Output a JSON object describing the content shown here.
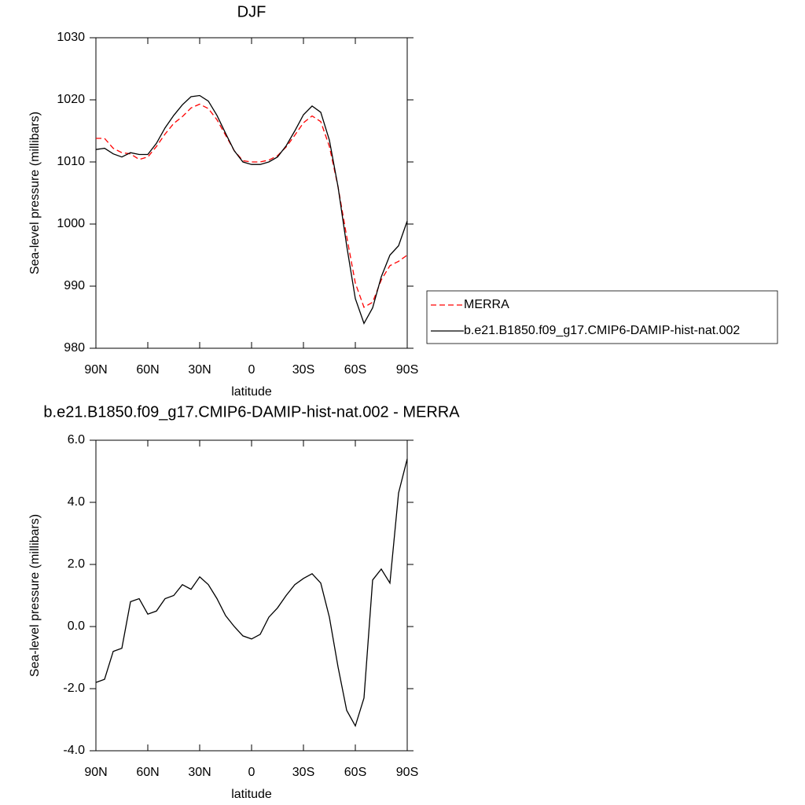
{
  "chart_data": [
    {
      "type": "line",
      "title": "DJF",
      "x_label": "latitude",
      "y_label": "Sea-level pressure (millibars)",
      "x": [
        90,
        85,
        80,
        75,
        70,
        65,
        60,
        55,
        50,
        45,
        40,
        35,
        30,
        25,
        20,
        15,
        10,
        5,
        0,
        -5,
        -10,
        -15,
        -20,
        -25,
        -30,
        -35,
        -40,
        -45,
        -50,
        -55,
        -60,
        -65,
        -70,
        -75,
        -80,
        -85,
        -90
      ],
      "series": [
        {
          "name": "MERRA",
          "color": "#ff0000",
          "dashed": true,
          "values": [
            1013.8,
            1013.8,
            1012.2,
            1011.5,
            1011.3,
            1010.4,
            1010.8,
            1012.5,
            1014.5,
            1016.2,
            1017.3,
            1018.7,
            1019.3,
            1018.6,
            1016.8,
            1014.3,
            1011.8,
            1010.2,
            1010.0,
            1010.0,
            1010.3,
            1011.0,
            1012.4,
            1014.3,
            1016.3,
            1017.4,
            1016.5,
            1012.5,
            1006,
            998,
            990.5,
            986.6,
            987.4,
            991,
            993.3,
            994,
            995
          ]
        },
        {
          "name": "b.e21.B1850.f09_g17.CMIP6-DAMIP-hist-nat.002",
          "color": "#000000",
          "dashed": false,
          "values": [
            1012.0,
            1012.2,
            1011.3,
            1010.8,
            1011.5,
            1011.2,
            1011.2,
            1013,
            1015.5,
            1017.5,
            1019.2,
            1020.5,
            1020.7,
            1019.8,
            1017.5,
            1014.6,
            1011.8,
            1010,
            1009.6,
            1009.6,
            1010,
            1010.8,
            1012.6,
            1015,
            1017.6,
            1019,
            1018,
            1013.5,
            1006,
            996.5,
            988,
            984,
            986.5,
            991.5,
            995,
            996.5,
            1000.5
          ]
        }
      ],
      "xlim": [
        90,
        -90
      ],
      "xticks": [
        {
          "value": 90,
          "label": "90N"
        },
        {
          "value": 60,
          "label": "60N"
        },
        {
          "value": 30,
          "label": "30N"
        },
        0,
        {
          "value": -30,
          "label": "30S"
        },
        {
          "value": -60,
          "label": "60S"
        },
        {
          "value": -90,
          "label": "90S"
        }
      ],
      "ylim": [
        980,
        1030
      ],
      "yticks": [
        980,
        990,
        1000,
        1010,
        1020,
        1030
      ],
      "legend": "right"
    },
    {
      "type": "line",
      "title": "b.e21.B1850.f09_g17.CMIP6-DAMIP-hist-nat.002 - MERRA",
      "x_label": "latitude",
      "y_label": "Sea-level pressure (millibars)",
      "x": [
        90,
        85,
        80,
        75,
        70,
        65,
        60,
        55,
        50,
        45,
        40,
        35,
        30,
        25,
        20,
        15,
        10,
        5,
        0,
        -5,
        -10,
        -15,
        -20,
        -25,
        -30,
        -35,
        -40,
        -45,
        -50,
        -55,
        -60,
        -65,
        -70,
        -75,
        -80,
        -85,
        -90
      ],
      "series": [
        {
          "color": "#000000",
          "dashed": false,
          "values": [
            -1.8,
            -1.7,
            -0.8,
            -0.7,
            0.8,
            0.9,
            0.4,
            0.5,
            0.9,
            1.0,
            1.35,
            1.2,
            1.6,
            1.35,
            0.9,
            0.35,
            0.0,
            -0.3,
            -0.4,
            -0.25,
            0.3,
            0.6,
            1.0,
            1.35,
            1.55,
            1.7,
            1.4,
            0.3,
            -1.3,
            -2.7,
            -3.2,
            -2.3,
            1.5,
            1.85,
            1.4,
            4.3,
            5.4
          ]
        }
      ],
      "xlim": [
        90,
        -90
      ],
      "xticks": [
        {
          "value": 90,
          "label": "90N"
        },
        {
          "value": 60,
          "label": "60N"
        },
        {
          "value": 30,
          "label": "30N"
        },
        0,
        {
          "value": -30,
          "label": "30S"
        },
        {
          "value": -60,
          "label": "60S"
        },
        {
          "value": -90,
          "label": "90S"
        }
      ],
      "ylim": [
        -4,
        6
      ],
      "yticks": [
        {
          "value": -4,
          "label": "-4.0"
        },
        {
          "value": -2,
          "label": "-2.0"
        },
        {
          "value": 0,
          "label": "0.0"
        },
        {
          "value": 2,
          "label": "2.0"
        },
        {
          "value": 4,
          "label": "4.0"
        },
        {
          "value": 6,
          "label": "6.0"
        }
      ]
    }
  ]
}
